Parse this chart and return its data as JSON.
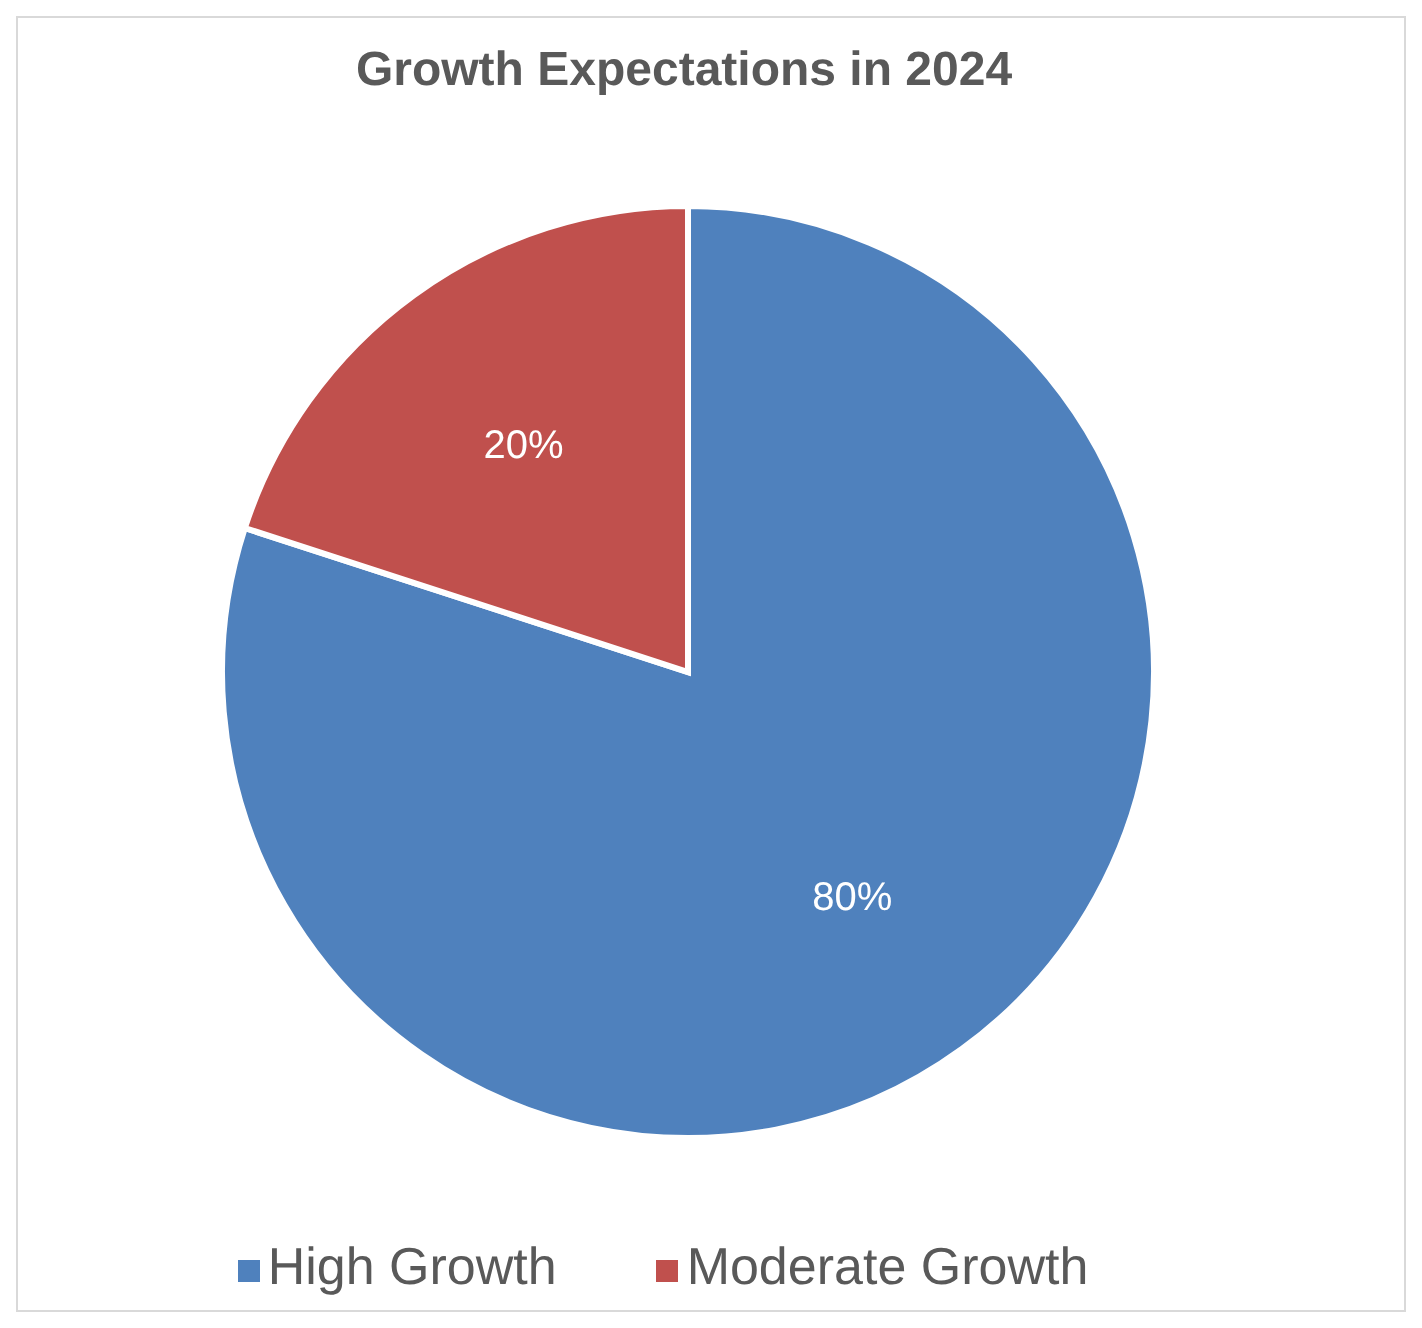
{
  "chart_data": {
    "type": "pie",
    "title": "Growth Expectations in 2024",
    "categories": [
      "High Growth",
      "Moderate Growth"
    ],
    "values": [
      80,
      20
    ],
    "colors": [
      "#4f81bd",
      "#c0504d"
    ],
    "value_labels": [
      "80%",
      "20%"
    ],
    "legend": "bottom"
  }
}
